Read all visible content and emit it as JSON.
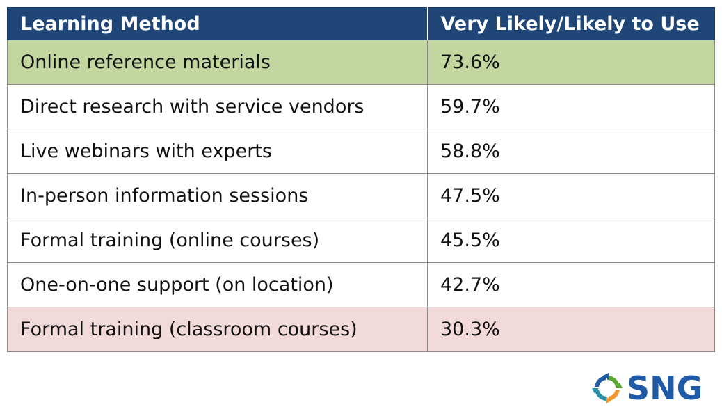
{
  "chart_data": {
    "type": "table",
    "columns": [
      "Learning Method",
      "Very Likely/Likely to Use"
    ],
    "rows": [
      {
        "method": "Online reference materials",
        "value": "73.6%",
        "highlight": "top"
      },
      {
        "method": "Direct research with service vendors",
        "value": "59.7%",
        "highlight": ""
      },
      {
        "method": "Live webinars with experts",
        "value": "58.8%",
        "highlight": ""
      },
      {
        "method": "In-person information sessions",
        "value": "47.5%",
        "highlight": ""
      },
      {
        "method": "Formal training (online courses)",
        "value": "45.5%",
        "highlight": ""
      },
      {
        "method": "One-on-one support (on location)",
        "value": "42.7%",
        "highlight": ""
      },
      {
        "method": "Formal training (classroom courses)",
        "value": "30.3%",
        "highlight": "bottom"
      }
    ]
  },
  "colors": {
    "header_bg": "#1f4677",
    "top_row_bg": "#c3d6a0",
    "bottom_row_bg": "#f2d9da",
    "logo_blue": "#1f5aa6",
    "logo_green": "#5aa832",
    "logo_orange": "#f0962a",
    "logo_teal": "#2a8fa8"
  },
  "logo": {
    "text": "SNG",
    "icon": "circular-arrows-icon"
  }
}
